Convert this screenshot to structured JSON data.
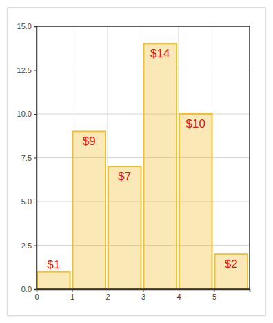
{
  "chart_data": {
    "type": "histogram",
    "bins": [
      0,
      1,
      2,
      3,
      4,
      5,
      6
    ],
    "values": [
      1,
      9,
      7,
      14,
      10,
      2
    ],
    "value_labels": [
      "$1",
      "$9",
      "$7",
      "$14",
      "$10",
      "$2"
    ],
    "data_labels": true,
    "color": "#f0c030",
    "xlim": [
      0,
      6
    ],
    "xticks": [
      0,
      1,
      2,
      3,
      4,
      5
    ],
    "ylim": [
      0,
      15
    ],
    "yticks": [
      {
        "value": 0,
        "label": "0.0"
      },
      {
        "value": 2.5,
        "label": "2.5"
      },
      {
        "value": 5,
        "label": "5.0"
      },
      {
        "value": 7.5,
        "label": "7.5"
      },
      {
        "value": 10,
        "label": "10.0"
      },
      {
        "value": 12.5,
        "label": "12.5"
      },
      {
        "value": 15,
        "label": "15.0"
      }
    ],
    "grid": true
  }
}
